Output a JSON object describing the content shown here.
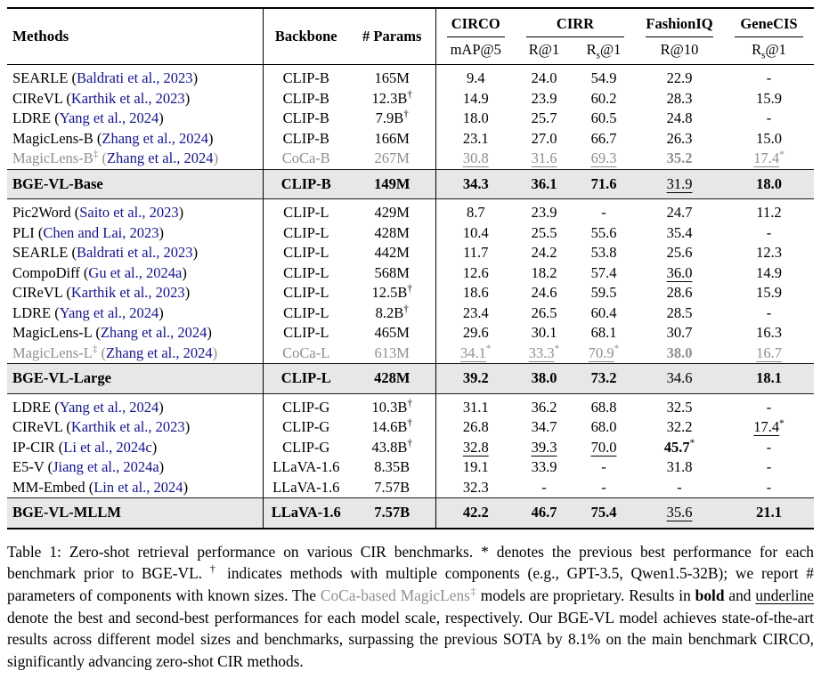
{
  "header": {
    "methods": "Methods",
    "backbone": "Backbone",
    "params": "# Params",
    "groups": [
      {
        "label": "CIRCO"
      },
      {
        "label": "CIRR"
      },
      {
        "label": "FashionIQ"
      },
      {
        "label": "GeneCIS"
      }
    ],
    "subs": {
      "circo": "mAP@5",
      "cirr_r1": "R@1",
      "rs_pre": "R",
      "rs_sub": "s",
      "rs_post": "@1",
      "fashioniq": "R@10"
    }
  },
  "rows": [
    {
      "name": "SEARLE",
      "cite": "Baldrati et al., 2023",
      "backbone": "CLIP-B",
      "params": "165M",
      "cells": [
        "9.4",
        "24.0",
        "54.9",
        "22.9",
        "-"
      ],
      "first": 1
    },
    {
      "name": "CIReVL",
      "cite": "Karthik et al., 2023",
      "backbone": "CLIP-B",
      "params": "12.3B†",
      "cells": [
        "14.9",
        "23.9",
        "60.2",
        "28.3",
        "15.9"
      ]
    },
    {
      "name": "LDRE",
      "cite": "Yang et al., 2024",
      "backbone": "CLIP-B",
      "params": "7.9B†",
      "cells": [
        "18.0",
        "25.7",
        "60.5",
        "24.8",
        "-"
      ]
    },
    {
      "name": "MagicLens-B",
      "cite": "Zhang et al., 2024",
      "backbone": "CLIP-B",
      "params": "166M",
      "cells": [
        "23.1",
        "27.0",
        "66.7",
        "26.3",
        "15.0"
      ]
    },
    {
      "name": "MagicLens-B",
      "sup": "‡",
      "gray": 1,
      "cite": "Zhang et al., 2024",
      "backbone": "CoCa-B",
      "params": "267M",
      "cells": [
        {
          "v": "30.8",
          "u": 1
        },
        {
          "v": "31.6",
          "u": 1
        },
        {
          "v": "69.3",
          "u": 1
        },
        {
          "v": "35.2",
          "b": 1
        },
        {
          "v": "17.4",
          "u": 1,
          "s": 1
        }
      ]
    },
    {
      "highlight": 1,
      "name": "BGE-VL-Base",
      "backbone": "CLIP-B",
      "params": "149M",
      "cells": [
        {
          "v": "34.3",
          "b": 1
        },
        {
          "v": "36.1",
          "b": 1
        },
        {
          "v": "71.6",
          "b": 1
        },
        {
          "v": "31.9",
          "u": 1,
          "nb": 1
        },
        {
          "v": "18.0",
          "b": 1
        }
      ]
    },
    {
      "name": "Pic2Word",
      "cite": "Saito et al., 2023",
      "backbone": "CLIP-L",
      "params": "429M",
      "cells": [
        "8.7",
        "23.9",
        "-",
        "24.7",
        "11.2"
      ],
      "first": 1
    },
    {
      "name": "PLI",
      "cite": "Chen and Lai, 2023",
      "backbone": "CLIP-L",
      "params": "428M",
      "cells": [
        "10.4",
        "25.5",
        "55.6",
        "35.4",
        "-"
      ]
    },
    {
      "name": "SEARLE",
      "cite": "Baldrati et al., 2023",
      "backbone": "CLIP-L",
      "params": "442M",
      "cells": [
        "11.7",
        "24.2",
        "53.8",
        "25.6",
        "12.3"
      ]
    },
    {
      "name": "CompoDiff",
      "cite": "Gu et al., 2024a",
      "backbone": "CLIP-L",
      "params": "568M",
      "cells": [
        "12.6",
        "18.2",
        "57.4",
        {
          "v": "36.0",
          "u": 1
        },
        "14.9"
      ]
    },
    {
      "name": "CIReVL",
      "cite": "Karthik et al., 2023",
      "backbone": "CLIP-L",
      "params": "12.5B†",
      "cells": [
        "18.6",
        "24.6",
        "59.5",
        "28.6",
        "15.9"
      ]
    },
    {
      "name": "LDRE",
      "cite": "Yang et al., 2024",
      "backbone": "CLIP-L",
      "params": "8.2B†",
      "cells": [
        "23.4",
        "26.5",
        "60.4",
        "28.5",
        "-"
      ]
    },
    {
      "name": "MagicLens-L",
      "cite": "Zhang et al., 2024",
      "backbone": "CLIP-L",
      "params": "465M",
      "cells": [
        "29.6",
        "30.1",
        "68.1",
        "30.7",
        "16.3"
      ]
    },
    {
      "name": "MagicLens-L",
      "sup": "‡",
      "gray": 1,
      "cite": "Zhang et al., 2024",
      "backbone": "CoCa-L",
      "params": "613M",
      "cells": [
        {
          "v": "34.1",
          "u": 1,
          "s": 1
        },
        {
          "v": "33.3",
          "u": 1,
          "s": 1
        },
        {
          "v": "70.9",
          "u": 1,
          "s": 1
        },
        {
          "v": "38.0",
          "b": 1
        },
        {
          "v": "16.7",
          "u": 1
        }
      ]
    },
    {
      "highlight": 1,
      "name": "BGE-VL-Large",
      "backbone": "CLIP-L",
      "params": "428M",
      "cells": [
        {
          "v": "39.2",
          "b": 1
        },
        {
          "v": "38.0",
          "b": 1
        },
        {
          "v": "73.2",
          "b": 1
        },
        {
          "v": "34.6",
          "nb": 1
        },
        {
          "v": "18.1",
          "b": 1
        }
      ]
    },
    {
      "name": "LDRE",
      "cite": "Yang et al., 2024",
      "backbone": "CLIP-G",
      "params": "10.3B†",
      "cells": [
        "31.1",
        "36.2",
        "68.8",
        "32.5",
        "-"
      ],
      "first": 1
    },
    {
      "name": "CIReVL",
      "cite": "Karthik et al., 2023",
      "backbone": "CLIP-G",
      "params": "14.6B†",
      "cells": [
        "26.8",
        "34.7",
        "68.0",
        "32.2",
        {
          "v": "17.4",
          "u": 1,
          "s": 1
        }
      ]
    },
    {
      "name": "IP-CIR",
      "cite": "Li et al., 2024c",
      "backbone": "CLIP-G",
      "params": "43.8B†",
      "cells": [
        {
          "v": "32.8",
          "u": 1
        },
        {
          "v": "39.3",
          "u": 1
        },
        {
          "v": "70.0",
          "u": 1
        },
        {
          "v": "45.7",
          "b": 1,
          "s": 1
        },
        "-"
      ]
    },
    {
      "name": "E5-V",
      "cite": "Jiang et al., 2024a",
      "backbone": "LLaVA-1.6",
      "params": "8.35B",
      "cells": [
        "19.1",
        "33.9",
        "-",
        "31.8",
        "-"
      ]
    },
    {
      "name": "MM-Embed",
      "cite": "Lin et al., 2024",
      "backbone": "LLaVA-1.6",
      "params": "7.57B",
      "cells": [
        "32.3",
        "-",
        "-",
        "-",
        "-"
      ]
    },
    {
      "highlight": 1,
      "name": "BGE-VL-MLLM",
      "backbone": "LLaVA-1.6",
      "params": "7.57B",
      "cells": [
        {
          "v": "42.2",
          "b": 1
        },
        {
          "v": "46.7",
          "b": 1
        },
        {
          "v": "75.4",
          "b": 1
        },
        {
          "v": "35.6",
          "u": 1,
          "nb": 1
        },
        {
          "v": "21.1",
          "b": 1
        }
      ]
    }
  ],
  "caption": {
    "segments": [
      {
        "t": "Table 1: Zero-shot retrieval performance on various CIR benchmarks. * denotes the previous best performance for each benchmark prior to BGE-VL. "
      },
      {
        "t": "†",
        "sup": 1
      },
      {
        "t": " indicates methods with multiple components (e.g., GPT-3.5, Qwen1.5-32B); we report # parameters of components with known sizes. The "
      },
      {
        "t": "CoCa-based MagicLens",
        "g": 1
      },
      {
        "t": "‡",
        "g": 1,
        "sup": 1
      },
      {
        "t": " models are proprietary. Results in "
      },
      {
        "t": "bold",
        "b": 1
      },
      {
        "t": " and "
      },
      {
        "t": "underline",
        "u": 1
      },
      {
        "t": " denote the best and second-best performances for each model scale, respectively. Our BGE-VL model achieves state-of-the-art results across different model sizes and benchmarks, surpassing the previous SOTA by 8.1% on the main benchmark CIRCO, significantly advancing zero-shot CIR methods."
      }
    ]
  }
}
